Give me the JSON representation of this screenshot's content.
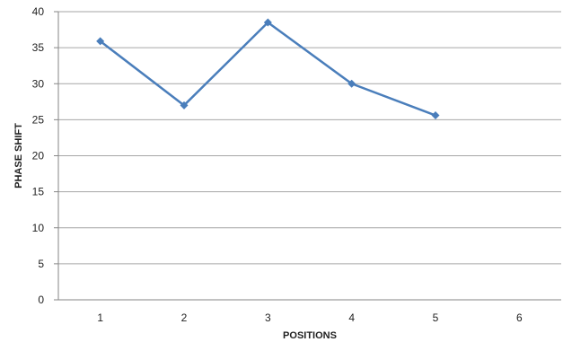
{
  "chart_data": {
    "type": "line",
    "title": "",
    "xlabel": "POSITIONS",
    "ylabel": "PHASE SHIFT",
    "categories": [
      "1",
      "2",
      "3",
      "4",
      "5",
      "6"
    ],
    "series": [
      {
        "values": [
          35.9,
          27.0,
          38.5,
          30.0,
          25.6,
          null
        ]
      }
    ],
    "y_ticks": [
      "0",
      "5",
      "10",
      "15",
      "20",
      "25",
      "30",
      "35",
      "40"
    ],
    "ylim": [
      0,
      40
    ],
    "grid": "horizontal",
    "legend": "none",
    "colors": {
      "series": "#4a7ebb",
      "grid": "#a6a6a6",
      "axis": "#868686"
    },
    "marker": "diamond"
  }
}
